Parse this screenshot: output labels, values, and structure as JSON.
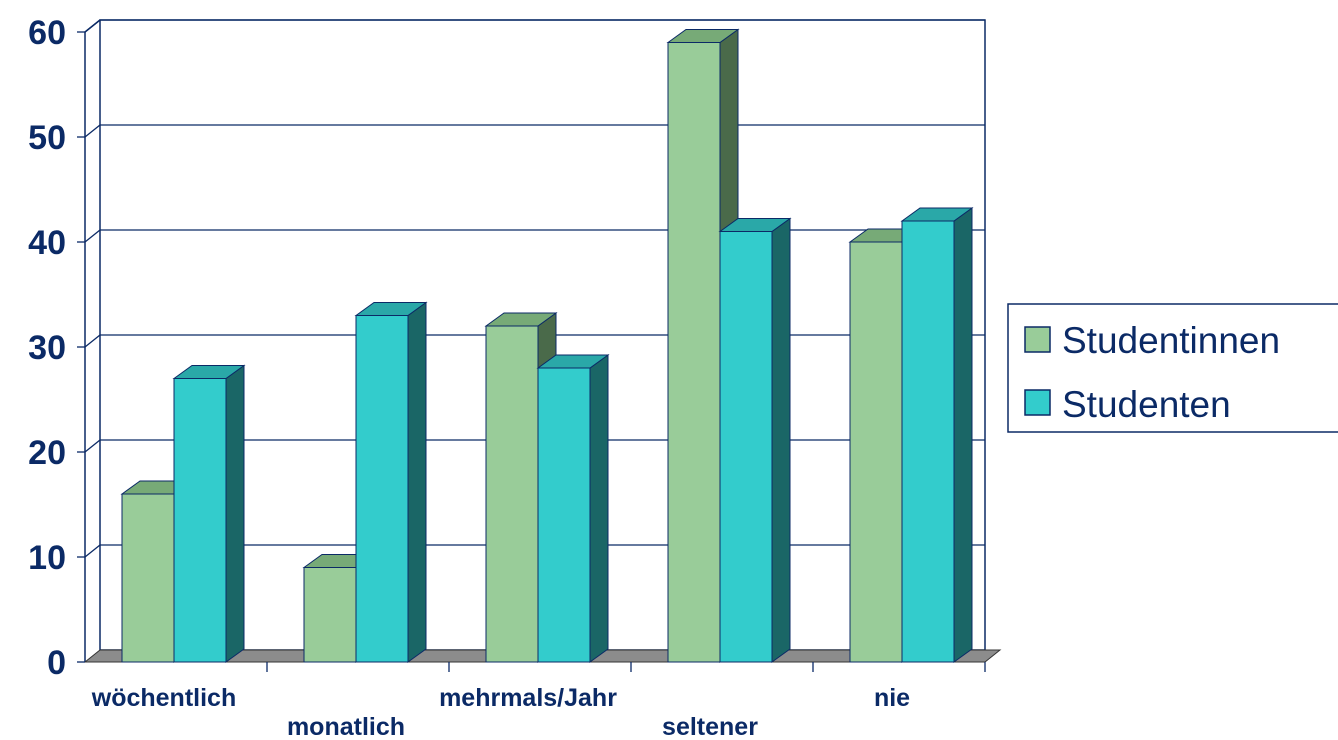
{
  "chart_data": {
    "type": "bar",
    "style": "3d-clustered",
    "categories": [
      "wöchentlich",
      "monatlich",
      "mehrmals/Jahr",
      "seltener",
      "nie"
    ],
    "series": [
      {
        "name": "Studentinnen",
        "values": [
          16,
          9,
          32,
          59,
          40
        ],
        "color": "#99cc99",
        "top_color": "#77aa77",
        "side_color": "#4a6a4a"
      },
      {
        "name": "Studenten",
        "values": [
          27,
          33,
          28,
          41,
          42
        ],
        "color": "#33cccc",
        "top_color": "#2aa8a8",
        "side_color": "#1a6666"
      }
    ],
    "yticks": [
      0,
      10,
      20,
      30,
      40,
      50,
      60
    ],
    "ylim": [
      0,
      60
    ],
    "grid": true,
    "legend_position": "right",
    "title": "",
    "xlabel": "",
    "ylabel": ""
  },
  "colors": {
    "axis_text": "#0b2a66",
    "grid_line": "#0b2a66",
    "floor": "#8c8c8c"
  }
}
